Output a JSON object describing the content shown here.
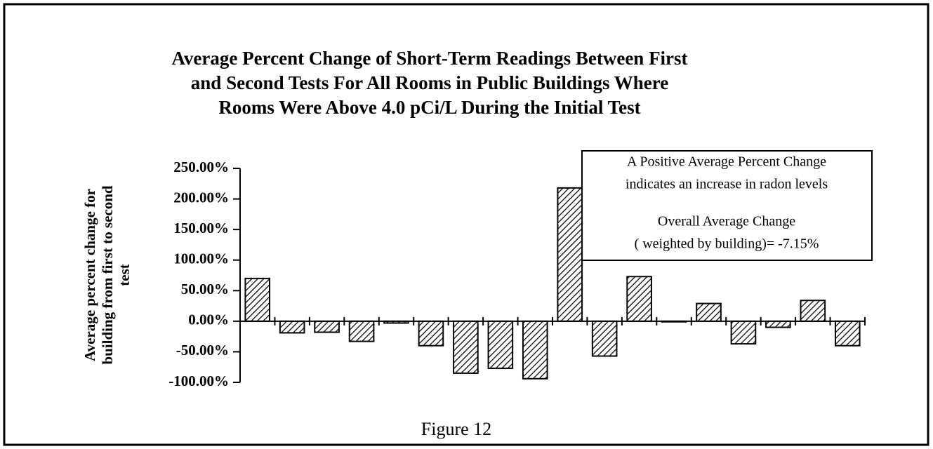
{
  "chart_data": {
    "type": "bar",
    "title": [
      "Average Percent Change of Short-Term Readings Between First",
      "and Second Tests For All Rooms in Public Buildings Where",
      "Rooms Were Above 4.0 pCi/L During the Initial Test"
    ],
    "y_label": [
      "Average percent change for",
      "building from first to second",
      "test"
    ],
    "annotation": [
      "A Positive Average Percent Change",
      "indicates an increase in radon levels",
      "Overall Average Change",
      "( weighted by building)= -7.15%"
    ],
    "caption": "Figure 12",
    "categories": [
      null,
      null,
      null,
      null,
      null,
      null,
      null,
      null,
      null,
      null,
      null,
      null,
      null,
      null,
      null,
      null,
      null,
      null
    ],
    "values": [
      70,
      -19,
      -18,
      -33,
      -3,
      -40,
      -85,
      -77,
      -94,
      218,
      -57,
      73,
      -1,
      29,
      -37,
      -10,
      34,
      -40
    ],
    "color": "#000000",
    "pattern": "hatch",
    "ylim": [
      -100,
      250
    ],
    "yticks": [
      {
        "value": -100,
        "label": "-100.00%"
      },
      {
        "value": -50,
        "label": "-50.00%"
      },
      {
        "value": 0,
        "label": "0.00%"
      },
      {
        "value": 50,
        "label": "50.00%"
      },
      {
        "value": 100,
        "label": "100.00%"
      },
      {
        "value": 150,
        "label": "150.00%"
      },
      {
        "value": 200,
        "label": "200.00%"
      },
      {
        "value": 250,
        "label": "250.00%"
      }
    ],
    "grid": false
  }
}
